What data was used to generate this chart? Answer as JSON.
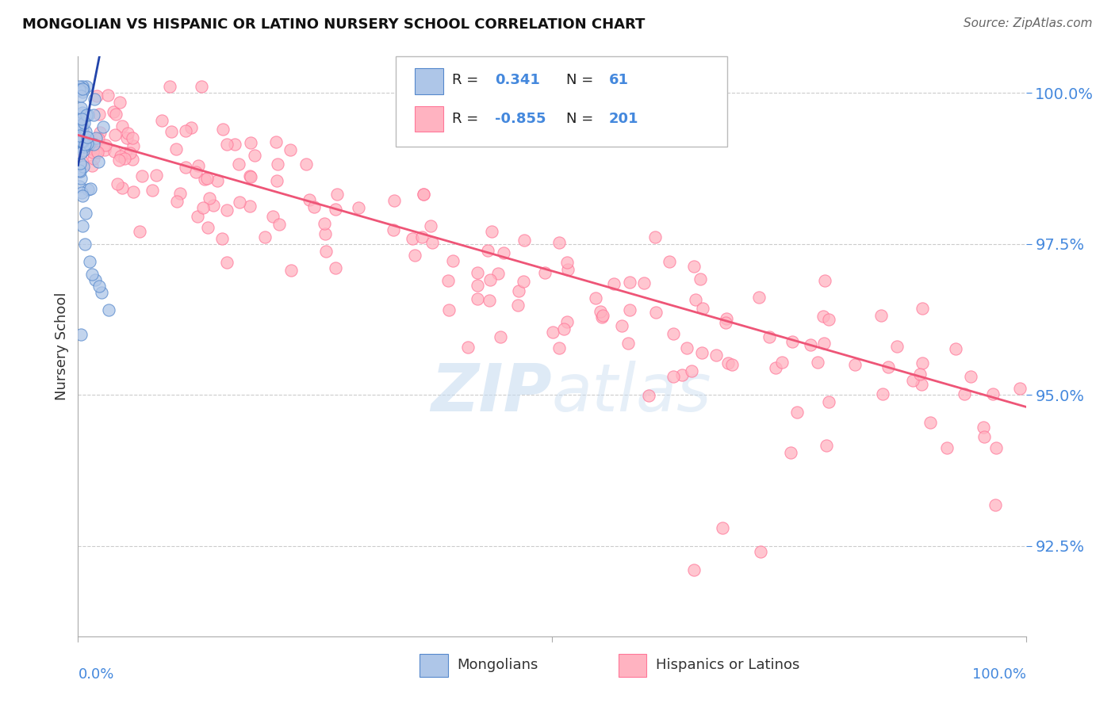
{
  "title": "MONGOLIAN VS HISPANIC OR LATINO NURSERY SCHOOL CORRELATION CHART",
  "source": "Source: ZipAtlas.com",
  "ylabel": "Nursery School",
  "xlim": [
    0.0,
    1.0
  ],
  "ylim": [
    0.91,
    1.006
  ],
  "ytick_labels": [
    "92.5%",
    "95.0%",
    "97.5%",
    "100.0%"
  ],
  "ytick_values": [
    0.925,
    0.95,
    0.975,
    1.0
  ],
  "legend_blue_label": "Mongolians",
  "legend_pink_label": "Hispanics or Latinos",
  "blue_fill_color": "#AEC6E8",
  "blue_edge_color": "#5588CC",
  "pink_fill_color": "#FFB3C1",
  "pink_edge_color": "#FF7799",
  "blue_line_color": "#2244AA",
  "pink_line_color": "#EE5577",
  "title_color": "#111111",
  "source_color": "#666666",
  "watermark_color": "#C8DCF0",
  "background_color": "#FFFFFF",
  "grid_color": "#CCCCCC",
  "axis_label_color": "#4488DD",
  "ylabel_color": "#333333"
}
